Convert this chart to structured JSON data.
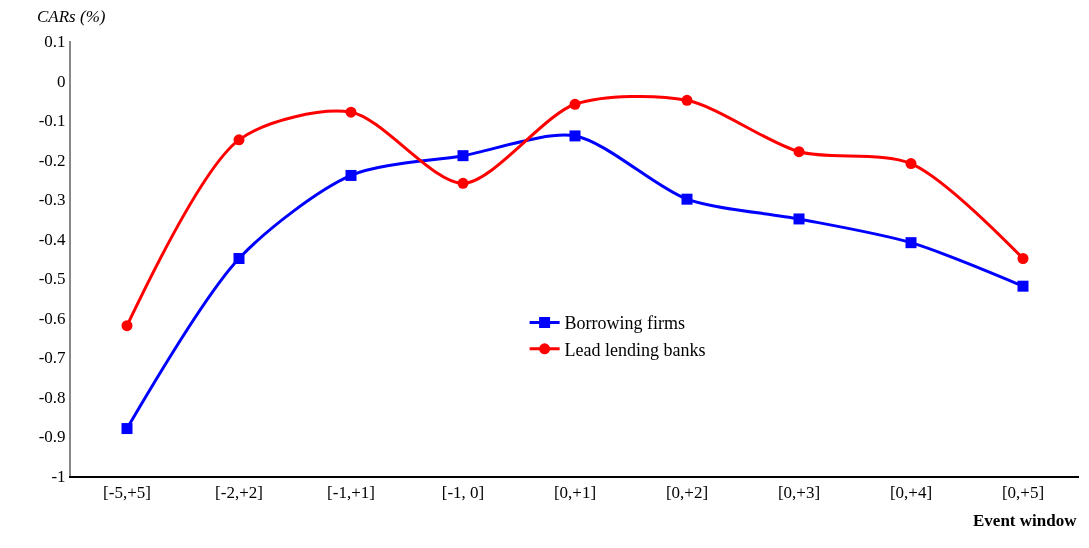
{
  "chart_data": {
    "type": "line",
    "ylabel": "CARs (%)",
    "xlabel": "Event window",
    "categories": [
      "[-5,+5]",
      "[-2,+2]",
      "[-1,+1]",
      "[-1, 0]",
      "[0,+1]",
      "[0,+2]",
      "[0,+3]",
      "[0,+4]",
      "[0,+5]"
    ],
    "series": [
      {
        "name": "Borrowing firms",
        "color": "#0000ff",
        "marker": "square",
        "values": [
          -0.88,
          -0.45,
          -0.24,
          -0.19,
          -0.14,
          -0.3,
          -0.35,
          -0.41,
          -0.52
        ]
      },
      {
        "name": "Lead lending banks",
        "color": "#ff0000",
        "marker": "circle",
        "values": [
          -0.62,
          -0.15,
          -0.08,
          -0.26,
          -0.06,
          -0.05,
          -0.18,
          -0.21,
          -0.45
        ]
      }
    ],
    "ylim": [
      -1,
      0.1
    ],
    "yticks": [
      -1,
      -0.9,
      -0.8,
      -0.7,
      -0.6,
      -0.5,
      -0.4,
      -0.3,
      -0.2,
      -0.1,
      0,
      0.1
    ],
    "legend": "bottom"
  }
}
